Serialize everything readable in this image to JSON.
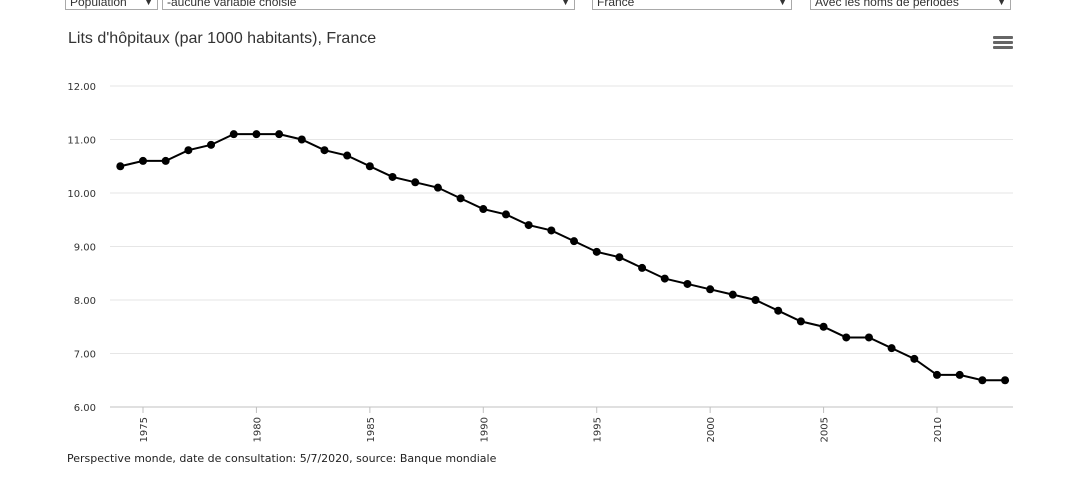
{
  "controls": {
    "population": "Population",
    "variable": "-aucune variable choisie",
    "country": "France",
    "period": "Avec les noms de périodes"
  },
  "chart_data": {
    "type": "line",
    "title": "Lits d'hôpitaux (par 1000 habitants), France",
    "xlabel": "",
    "ylabel": "",
    "ylim": [
      6,
      12
    ],
    "yticks": [
      "6.00",
      "7.00",
      "8.00",
      "9.00",
      "10.00",
      "11.00",
      "12.00"
    ],
    "xticks": [
      "1975",
      "1980",
      "1985",
      "1990",
      "1995",
      "2000",
      "2005",
      "2010"
    ],
    "grid": true,
    "legend": "none",
    "color": "#000000",
    "series": [
      {
        "x": [
          1974,
          1975,
          1976,
          1977,
          1978,
          1979,
          1980,
          1981,
          1982,
          1983,
          1984,
          1985,
          1986,
          1987,
          1988,
          1989,
          1990,
          1991,
          1992,
          1993,
          1994,
          1995,
          1996,
          1997,
          1998,
          1999,
          2000,
          2001,
          2002,
          2003,
          2004,
          2005,
          2006,
          2007,
          2008,
          2009,
          2010,
          2011,
          2012,
          2013
        ],
        "values": [
          10.5,
          10.6,
          10.6,
          10.8,
          10.9,
          11.1,
          11.1,
          11.1,
          11.0,
          10.8,
          10.7,
          10.5,
          10.3,
          10.2,
          10.1,
          9.9,
          9.7,
          9.6,
          9.4,
          9.3,
          9.1,
          8.9,
          8.8,
          8.6,
          8.4,
          8.3,
          8.2,
          8.1,
          8.0,
          7.8,
          7.6,
          7.5,
          7.3,
          7.3,
          7.1,
          6.9,
          6.6,
          6.6,
          6.5,
          6.5
        ]
      }
    ]
  },
  "footer": {
    "source": "Perspective monde, date de consultation: 5/7/2020, source: Banque mondiale"
  }
}
